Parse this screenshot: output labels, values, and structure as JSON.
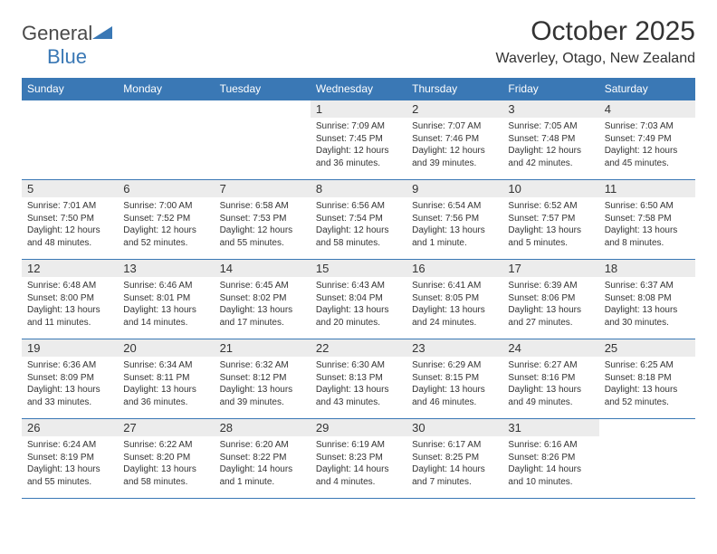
{
  "logo": {
    "general": "General",
    "blue": "Blue"
  },
  "title": "October 2025",
  "location": "Waverley, Otago, New Zealand",
  "colors": {
    "header_bg": "#3a78b5",
    "header_text": "#ffffff",
    "border": "#3a78b5",
    "dayband_bg": "#ececec",
    "text": "#333333"
  },
  "fonts": {
    "title_size": 30,
    "location_size": 16,
    "weekday_size": 12,
    "daynum_size": 13,
    "body_size": 10
  },
  "weekdays": [
    "Sunday",
    "Monday",
    "Tuesday",
    "Wednesday",
    "Thursday",
    "Friday",
    "Saturday"
  ],
  "weeks": [
    [
      {
        "empty": true
      },
      {
        "empty": true
      },
      {
        "empty": true
      },
      {
        "day": "1",
        "sunrise": "Sunrise: 7:09 AM",
        "sunset": "Sunset: 7:45 PM",
        "daylight1": "Daylight: 12 hours",
        "daylight2": "and 36 minutes."
      },
      {
        "day": "2",
        "sunrise": "Sunrise: 7:07 AM",
        "sunset": "Sunset: 7:46 PM",
        "daylight1": "Daylight: 12 hours",
        "daylight2": "and 39 minutes."
      },
      {
        "day": "3",
        "sunrise": "Sunrise: 7:05 AM",
        "sunset": "Sunset: 7:48 PM",
        "daylight1": "Daylight: 12 hours",
        "daylight2": "and 42 minutes."
      },
      {
        "day": "4",
        "sunrise": "Sunrise: 7:03 AM",
        "sunset": "Sunset: 7:49 PM",
        "daylight1": "Daylight: 12 hours",
        "daylight2": "and 45 minutes."
      }
    ],
    [
      {
        "day": "5",
        "sunrise": "Sunrise: 7:01 AM",
        "sunset": "Sunset: 7:50 PM",
        "daylight1": "Daylight: 12 hours",
        "daylight2": "and 48 minutes."
      },
      {
        "day": "6",
        "sunrise": "Sunrise: 7:00 AM",
        "sunset": "Sunset: 7:52 PM",
        "daylight1": "Daylight: 12 hours",
        "daylight2": "and 52 minutes."
      },
      {
        "day": "7",
        "sunrise": "Sunrise: 6:58 AM",
        "sunset": "Sunset: 7:53 PM",
        "daylight1": "Daylight: 12 hours",
        "daylight2": "and 55 minutes."
      },
      {
        "day": "8",
        "sunrise": "Sunrise: 6:56 AM",
        "sunset": "Sunset: 7:54 PM",
        "daylight1": "Daylight: 12 hours",
        "daylight2": "and 58 minutes."
      },
      {
        "day": "9",
        "sunrise": "Sunrise: 6:54 AM",
        "sunset": "Sunset: 7:56 PM",
        "daylight1": "Daylight: 13 hours",
        "daylight2": "and 1 minute."
      },
      {
        "day": "10",
        "sunrise": "Sunrise: 6:52 AM",
        "sunset": "Sunset: 7:57 PM",
        "daylight1": "Daylight: 13 hours",
        "daylight2": "and 5 minutes."
      },
      {
        "day": "11",
        "sunrise": "Sunrise: 6:50 AM",
        "sunset": "Sunset: 7:58 PM",
        "daylight1": "Daylight: 13 hours",
        "daylight2": "and 8 minutes."
      }
    ],
    [
      {
        "day": "12",
        "sunrise": "Sunrise: 6:48 AM",
        "sunset": "Sunset: 8:00 PM",
        "daylight1": "Daylight: 13 hours",
        "daylight2": "and 11 minutes."
      },
      {
        "day": "13",
        "sunrise": "Sunrise: 6:46 AM",
        "sunset": "Sunset: 8:01 PM",
        "daylight1": "Daylight: 13 hours",
        "daylight2": "and 14 minutes."
      },
      {
        "day": "14",
        "sunrise": "Sunrise: 6:45 AM",
        "sunset": "Sunset: 8:02 PM",
        "daylight1": "Daylight: 13 hours",
        "daylight2": "and 17 minutes."
      },
      {
        "day": "15",
        "sunrise": "Sunrise: 6:43 AM",
        "sunset": "Sunset: 8:04 PM",
        "daylight1": "Daylight: 13 hours",
        "daylight2": "and 20 minutes."
      },
      {
        "day": "16",
        "sunrise": "Sunrise: 6:41 AM",
        "sunset": "Sunset: 8:05 PM",
        "daylight1": "Daylight: 13 hours",
        "daylight2": "and 24 minutes."
      },
      {
        "day": "17",
        "sunrise": "Sunrise: 6:39 AM",
        "sunset": "Sunset: 8:06 PM",
        "daylight1": "Daylight: 13 hours",
        "daylight2": "and 27 minutes."
      },
      {
        "day": "18",
        "sunrise": "Sunrise: 6:37 AM",
        "sunset": "Sunset: 8:08 PM",
        "daylight1": "Daylight: 13 hours",
        "daylight2": "and 30 minutes."
      }
    ],
    [
      {
        "day": "19",
        "sunrise": "Sunrise: 6:36 AM",
        "sunset": "Sunset: 8:09 PM",
        "daylight1": "Daylight: 13 hours",
        "daylight2": "and 33 minutes."
      },
      {
        "day": "20",
        "sunrise": "Sunrise: 6:34 AM",
        "sunset": "Sunset: 8:11 PM",
        "daylight1": "Daylight: 13 hours",
        "daylight2": "and 36 minutes."
      },
      {
        "day": "21",
        "sunrise": "Sunrise: 6:32 AM",
        "sunset": "Sunset: 8:12 PM",
        "daylight1": "Daylight: 13 hours",
        "daylight2": "and 39 minutes."
      },
      {
        "day": "22",
        "sunrise": "Sunrise: 6:30 AM",
        "sunset": "Sunset: 8:13 PM",
        "daylight1": "Daylight: 13 hours",
        "daylight2": "and 43 minutes."
      },
      {
        "day": "23",
        "sunrise": "Sunrise: 6:29 AM",
        "sunset": "Sunset: 8:15 PM",
        "daylight1": "Daylight: 13 hours",
        "daylight2": "and 46 minutes."
      },
      {
        "day": "24",
        "sunrise": "Sunrise: 6:27 AM",
        "sunset": "Sunset: 8:16 PM",
        "daylight1": "Daylight: 13 hours",
        "daylight2": "and 49 minutes."
      },
      {
        "day": "25",
        "sunrise": "Sunrise: 6:25 AM",
        "sunset": "Sunset: 8:18 PM",
        "daylight1": "Daylight: 13 hours",
        "daylight2": "and 52 minutes."
      }
    ],
    [
      {
        "day": "26",
        "sunrise": "Sunrise: 6:24 AM",
        "sunset": "Sunset: 8:19 PM",
        "daylight1": "Daylight: 13 hours",
        "daylight2": "and 55 minutes."
      },
      {
        "day": "27",
        "sunrise": "Sunrise: 6:22 AM",
        "sunset": "Sunset: 8:20 PM",
        "daylight1": "Daylight: 13 hours",
        "daylight2": "and 58 minutes."
      },
      {
        "day": "28",
        "sunrise": "Sunrise: 6:20 AM",
        "sunset": "Sunset: 8:22 PM",
        "daylight1": "Daylight: 14 hours",
        "daylight2": "and 1 minute."
      },
      {
        "day": "29",
        "sunrise": "Sunrise: 6:19 AM",
        "sunset": "Sunset: 8:23 PM",
        "daylight1": "Daylight: 14 hours",
        "daylight2": "and 4 minutes."
      },
      {
        "day": "30",
        "sunrise": "Sunrise: 6:17 AM",
        "sunset": "Sunset: 8:25 PM",
        "daylight1": "Daylight: 14 hours",
        "daylight2": "and 7 minutes."
      },
      {
        "day": "31",
        "sunrise": "Sunrise: 6:16 AM",
        "sunset": "Sunset: 8:26 PM",
        "daylight1": "Daylight: 14 hours",
        "daylight2": "and 10 minutes."
      },
      {
        "empty": true
      }
    ]
  ]
}
